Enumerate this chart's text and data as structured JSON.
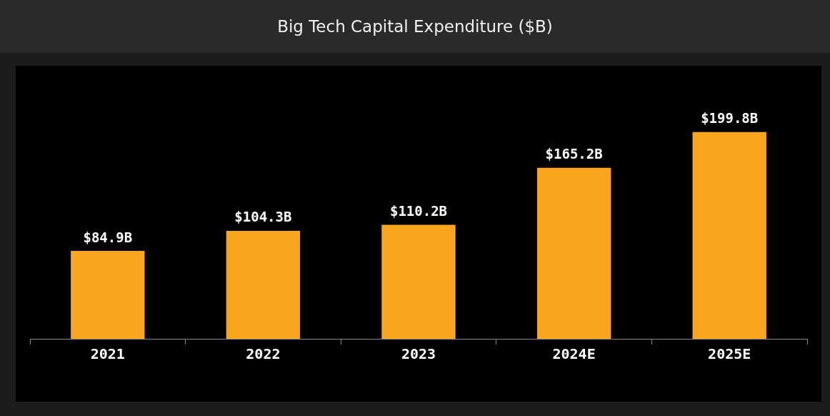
{
  "chart_data": {
    "type": "bar",
    "title": "Big Tech Capital Expenditure ($B)",
    "categories": [
      "2021",
      "2022",
      "2023",
      "2024E",
      "2025E"
    ],
    "values": [
      84.9,
      104.3,
      110.2,
      165.2,
      199.8
    ],
    "color": "#f9a51e",
    "value_labels": [
      "$84.9B",
      "$104.3B",
      "$110.2B",
      "$165.2B",
      "$199.8B"
    ],
    "legend": false
  }
}
